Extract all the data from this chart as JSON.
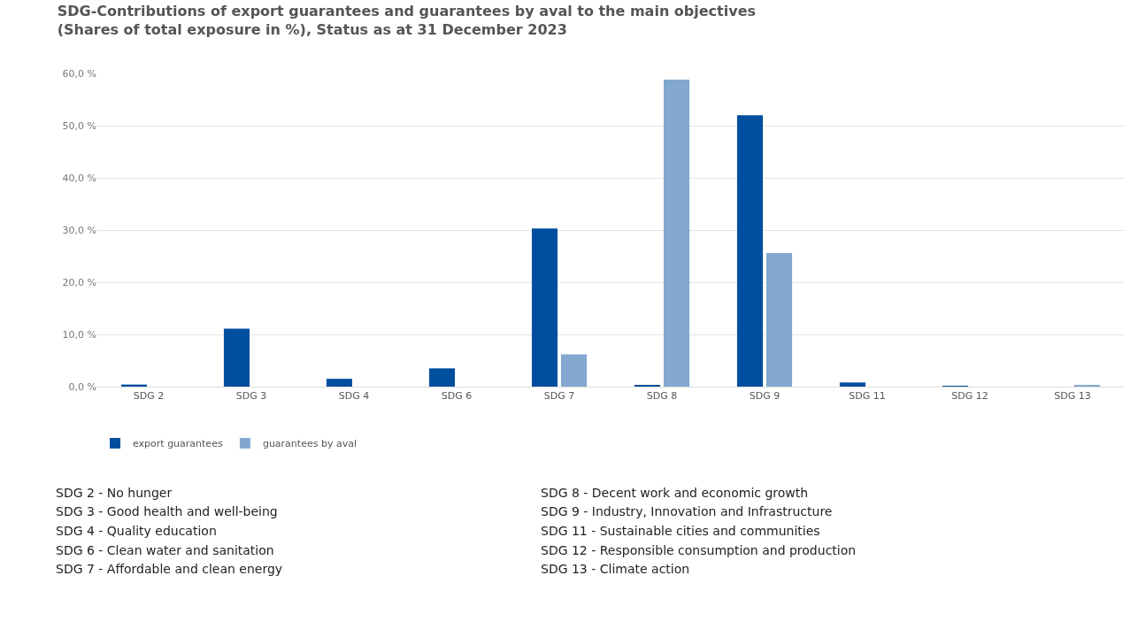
{
  "chart_data": {
    "type": "bar",
    "title": "SDG-Contributions of export guarantees and guarantees by aval to the main objectives\n(Shares of total exposure in %), Status as at 31 December 2023",
    "categories": [
      "SDG 2",
      "SDG 3",
      "SDG 4",
      "SDG 6",
      "SDG 7",
      "SDG 8",
      "SDG 9",
      "SDG 11",
      "SDG 12",
      "SDG 13"
    ],
    "series": [
      {
        "name": "export guarantees",
        "color": "#004f9f",
        "values": [
          0.4,
          11.1,
          1.5,
          3.5,
          30.3,
          0.2,
          52.0,
          0.8,
          0.1,
          null
        ]
      },
      {
        "name": "guarantees by aval",
        "color": "#82a8d1",
        "values": [
          null,
          null,
          null,
          null,
          6.2,
          58.8,
          25.6,
          null,
          null,
          0.2
        ]
      }
    ],
    "ylim": [
      0,
      60
    ],
    "yticks": [
      {
        "value": 0,
        "label": "0,0 %"
      },
      {
        "value": 10,
        "label": "10,0 %"
      },
      {
        "value": 20,
        "label": "20,0 %"
      },
      {
        "value": 30,
        "label": "30,0 %"
      },
      {
        "value": 40,
        "label": "40,0 %"
      },
      {
        "value": 50,
        "label": "50,0 %"
      },
      {
        "value": 60,
        "label": "60,0 %"
      }
    ],
    "grid": "y",
    "legend": "bottom left",
    "annotations": [
      "SDG 2 - No hunger",
      "SDG 3 - Good health and well-being",
      "SDG 4 - Quality education",
      "SDG 6 - Clean water and sanitation",
      "SDG 7 - Affordable and clean energy",
      "SDG 8 - Decent work and economic growth",
      "SDG 9 - Industry, Innovation and Infrastructure",
      "SDG 11 - Sustainable cities and communities",
      "SDG 12 - Responsible consumption and production",
      "SDG 13 - Climate action"
    ]
  }
}
